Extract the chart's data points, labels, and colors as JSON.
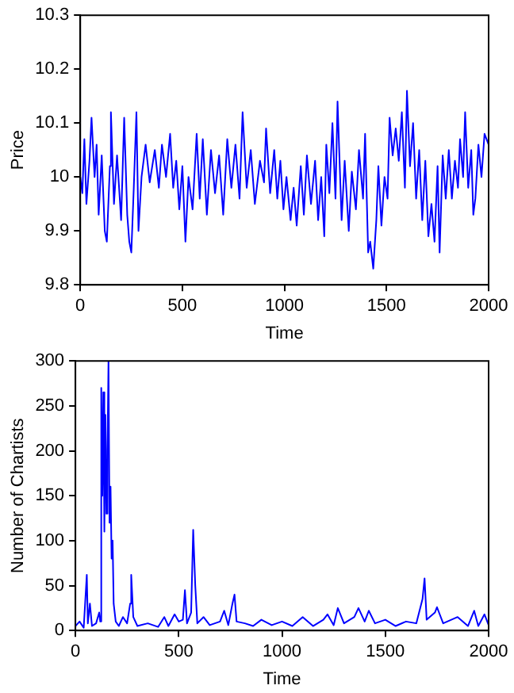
{
  "chart_data": [
    {
      "type": "line",
      "xlabel": "Time",
      "ylabel": "Price",
      "xlim": [
        0,
        2000
      ],
      "xticks": [
        0,
        500,
        1000,
        1500,
        2000
      ],
      "ylim": [
        9.8,
        10.3
      ],
      "yticks": [
        9.8,
        9.9,
        10,
        10.1,
        10.2,
        10.3
      ],
      "grid": false,
      "legend": false,
      "marker": "none",
      "line_style": "solid",
      "series": [
        {
          "color": "#0000ff",
          "x": [
            0,
            10,
            20,
            30,
            45,
            55,
            70,
            80,
            90,
            105,
            120,
            130,
            145,
            150,
            165,
            180,
            200,
            215,
            230,
            240,
            250,
            262,
            275,
            285,
            300,
            320,
            340,
            365,
            385,
            400,
            420,
            440,
            455,
            470,
            485,
            500,
            515,
            530,
            550,
            570,
            585,
            600,
            620,
            640,
            660,
            680,
            700,
            720,
            740,
            760,
            780,
            795,
            815,
            835,
            855,
            880,
            900,
            910,
            930,
            950,
            965,
            980,
            995,
            1010,
            1030,
            1045,
            1060,
            1080,
            1095,
            1110,
            1130,
            1150,
            1165,
            1180,
            1195,
            1205,
            1220,
            1235,
            1250,
            1260,
            1280,
            1295,
            1315,
            1330,
            1350,
            1365,
            1385,
            1395,
            1410,
            1420,
            1435,
            1450,
            1460,
            1475,
            1490,
            1505,
            1515,
            1530,
            1545,
            1560,
            1575,
            1590,
            1600,
            1615,
            1630,
            1645,
            1660,
            1675,
            1690,
            1705,
            1720,
            1735,
            1750,
            1760,
            1775,
            1790,
            1805,
            1820,
            1835,
            1850,
            1860,
            1875,
            1885,
            1900,
            1915,
            1925,
            1935,
            1950,
            1965,
            1980,
            2000
          ],
          "values": [
            10.0,
            9.97,
            10.07,
            9.95,
            10.03,
            10.11,
            10.0,
            10.06,
            9.93,
            10.04,
            9.9,
            9.88,
            10.02,
            10.12,
            9.95,
            10.04,
            9.92,
            10.11,
            9.93,
            9.88,
            9.86,
            9.98,
            10.12,
            9.9,
            10.0,
            10.06,
            9.99,
            10.05,
            9.98,
            10.06,
            10.0,
            10.08,
            9.98,
            10.03,
            9.94,
            10.02,
            9.88,
            10.0,
            9.94,
            10.08,
            9.96,
            10.07,
            9.93,
            10.05,
            9.97,
            10.04,
            9.93,
            10.07,
            9.98,
            10.06,
            9.96,
            10.12,
            9.98,
            10.05,
            9.95,
            10.03,
            9.99,
            10.09,
            9.97,
            10.05,
            9.96,
            10.03,
            9.94,
            10.0,
            9.92,
            9.98,
            9.91,
            10.02,
            9.93,
            10.04,
            9.95,
            10.03,
            9.92,
            10.0,
            9.89,
            10.06,
            9.97,
            10.1,
            9.96,
            10.14,
            9.92,
            10.03,
            9.9,
            10.01,
            9.94,
            10.05,
            9.96,
            10.08,
            9.86,
            9.88,
            9.83,
            9.92,
            10.02,
            9.91,
            10.0,
            9.96,
            10.11,
            10.04,
            10.09,
            10.03,
            10.12,
            9.98,
            10.16,
            10.02,
            10.1,
            9.96,
            10.05,
            9.92,
            10.03,
            9.89,
            9.95,
            9.88,
            10.02,
            9.86,
            10.04,
            9.96,
            10.05,
            9.96,
            10.03,
            9.98,
            10.07,
            10.0,
            10.12,
            9.98,
            10.05,
            9.93,
            9.96,
            10.06,
            10.0,
            10.08,
            10.06
          ]
        }
      ]
    },
    {
      "type": "line",
      "xlabel": "Time",
      "ylabel": "Number of Chartists",
      "xlim": [
        0,
        2000
      ],
      "xticks": [
        0,
        500,
        1000,
        1500,
        2000
      ],
      "ylim": [
        0,
        300
      ],
      "yticks": [
        0,
        50,
        100,
        150,
        200,
        250,
        300
      ],
      "grid": false,
      "legend": false,
      "marker": "none",
      "line_style": "solid",
      "series": [
        {
          "color": "#0000ff",
          "x": [
            0,
            20,
            40,
            55,
            60,
            70,
            80,
            100,
            115,
            120,
            125,
            130,
            135,
            140,
            145,
            150,
            155,
            160,
            165,
            170,
            175,
            180,
            185,
            195,
            210,
            230,
            250,
            265,
            270,
            280,
            300,
            350,
            400,
            430,
            450,
            480,
            500,
            520,
            530,
            540,
            560,
            570,
            580,
            590,
            620,
            650,
            700,
            720,
            740,
            760,
            770,
            780,
            820,
            860,
            900,
            950,
            1000,
            1050,
            1100,
            1150,
            1200,
            1220,
            1250,
            1270,
            1300,
            1350,
            1370,
            1400,
            1420,
            1450,
            1500,
            1550,
            1600,
            1650,
            1680,
            1690,
            1700,
            1740,
            1750,
            1780,
            1850,
            1900,
            1930,
            1950,
            1980,
            2000
          ],
          "values": [
            5,
            10,
            3,
            62,
            8,
            30,
            5,
            8,
            20,
            10,
            270,
            150,
            265,
            110,
            240,
            130,
            200,
            300,
            120,
            160,
            80,
            100,
            30,
            10,
            5,
            15,
            8,
            30,
            62,
            15,
            5,
            8,
            4,
            15,
            5,
            18,
            10,
            12,
            45,
            8,
            20,
            112,
            50,
            8,
            15,
            6,
            10,
            22,
            6,
            30,
            40,
            10,
            8,
            5,
            12,
            6,
            10,
            5,
            15,
            5,
            12,
            18,
            6,
            25,
            8,
            15,
            25,
            10,
            22,
            8,
            12,
            5,
            10,
            8,
            35,
            58,
            12,
            20,
            26,
            8,
            15,
            5,
            22,
            5,
            18,
            6
          ]
        }
      ]
    }
  ]
}
